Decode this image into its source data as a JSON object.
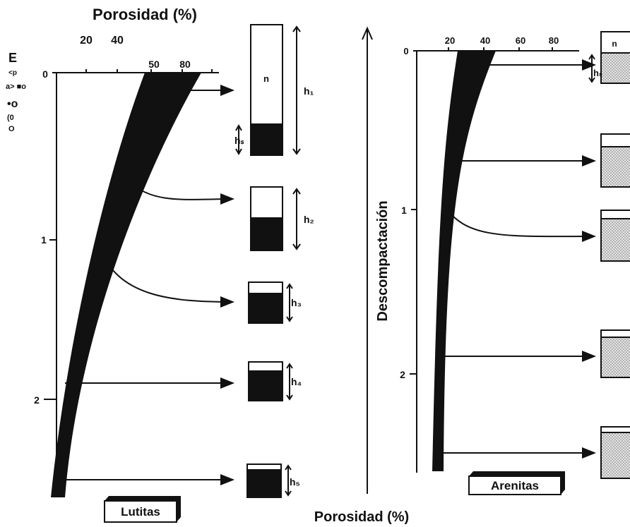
{
  "header": {
    "title": "Porosidad (%)",
    "ticks": [
      "20",
      "40"
    ]
  },
  "left_panel": {
    "side_marks": [
      "E",
      "<p",
      "a> ■o",
      "•o",
      "(0",
      "O"
    ],
    "x_ticks": [
      "50",
      "80"
    ],
    "depth_ticks": [
      "0",
      "1",
      "2"
    ],
    "box_labels": [
      "n",
      "h₁",
      "hₛ",
      "h₂",
      "h₃",
      "h₄",
      "h₅"
    ],
    "label": "Lutitas"
  },
  "right_panel": {
    "axis_label": "Descompactación",
    "x_ticks": [
      "0",
      "20",
      "40",
      "60",
      "80"
    ],
    "depth_ticks": [
      "1",
      "2"
    ],
    "box_labels": [
      "n",
      "hₛ"
    ],
    "label": "Arenitas"
  },
  "footer": {
    "title": "Porosidad (%)"
  }
}
